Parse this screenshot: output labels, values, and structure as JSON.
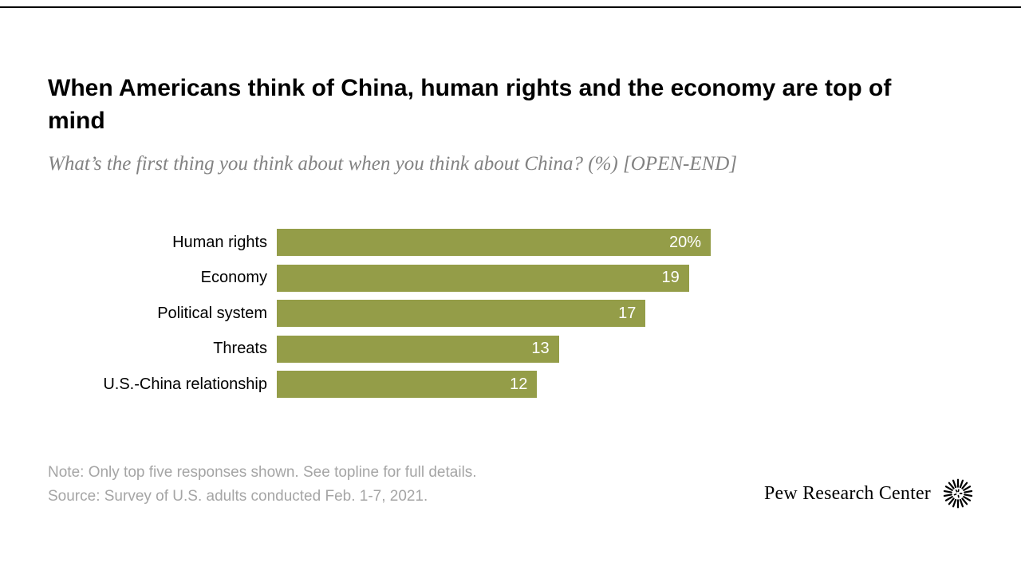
{
  "header": {
    "title": "When Americans think of China, human rights and the economy are top of mind",
    "subtitle": "What’s the first thing you think about when you think about China? (%) [OPEN-END]"
  },
  "chart_data": {
    "type": "bar",
    "orientation": "horizontal",
    "title": "When Americans think of China, human rights and the economy are top of mind",
    "subtitle": "What’s the first thing you think about when you think about China? (%) [OPEN-END]",
    "categories": [
      "Human rights",
      "Economy",
      "Political system",
      "Threats",
      "U.S.-China relationship"
    ],
    "values": [
      20,
      19,
      17,
      13,
      12
    ],
    "value_labels": [
      "20%",
      "19",
      "17",
      "13",
      "12"
    ],
    "xlim": [
      0,
      20
    ],
    "bar_color": "#949d48",
    "value_label_color": "#ffffff",
    "grid": false,
    "legend": "none"
  },
  "footer": {
    "note": "Note: Only top five responses shown. See topline for full details.",
    "source": "Source: Survey of U.S. adults conducted Feb. 1-7, 2021.",
    "brand": "Pew Research Center"
  }
}
